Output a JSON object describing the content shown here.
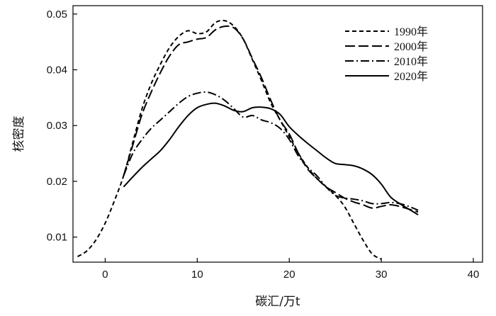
{
  "chart_data": {
    "type": "line",
    "title": "",
    "xlabel": "碳汇/万t",
    "ylabel": "核密度",
    "xlim": [
      -3.5,
      41
    ],
    "ylim": [
      0.0055,
      0.0515
    ],
    "xticks": [
      0,
      10,
      20,
      30,
      40
    ],
    "yticks": [
      0.01,
      0.02,
      0.03,
      0.04,
      0.05
    ],
    "ytick_labels": [
      "0.01",
      "0.02",
      "0.03",
      "0.04",
      "0.05"
    ],
    "grid": false,
    "legend_position": "top-right",
    "series": [
      {
        "name": "1990年",
        "dash": "dashed-short",
        "points": [
          [
            -3,
            0.0065
          ],
          [
            -2,
            0.0075
          ],
          [
            -1,
            0.0095
          ],
          [
            0,
            0.0125
          ],
          [
            1,
            0.0165
          ],
          [
            2,
            0.021
          ],
          [
            3,
            0.027
          ],
          [
            4,
            0.033
          ],
          [
            5,
            0.0375
          ],
          [
            6,
            0.041
          ],
          [
            7,
            0.044
          ],
          [
            8,
            0.046
          ],
          [
            9,
            0.047
          ],
          [
            10,
            0.0465
          ],
          [
            11,
            0.0468
          ],
          [
            12,
            0.0485
          ],
          [
            13,
            0.0488
          ],
          [
            14,
            0.0478
          ],
          [
            15,
            0.0455
          ],
          [
            16,
            0.0418
          ],
          [
            17,
            0.038
          ],
          [
            18,
            0.034
          ],
          [
            19,
            0.031
          ],
          [
            20,
            0.028
          ],
          [
            21,
            0.025
          ],
          [
            22,
            0.0225
          ],
          [
            23,
            0.0205
          ],
          [
            24,
            0.019
          ],
          [
            25,
            0.0175
          ],
          [
            26,
            0.0155
          ],
          [
            27,
            0.0125
          ],
          [
            28,
            0.0095
          ],
          [
            29,
            0.007
          ],
          [
            30,
            0.006
          ]
        ]
      },
      {
        "name": "2000年",
        "dash": "dashed-long",
        "points": [
          [
            2,
            0.021
          ],
          [
            3,
            0.0265
          ],
          [
            4,
            0.032
          ],
          [
            5,
            0.036
          ],
          [
            6,
            0.0395
          ],
          [
            7,
            0.0425
          ],
          [
            8,
            0.0445
          ],
          [
            9,
            0.045
          ],
          [
            10,
            0.0455
          ],
          [
            11,
            0.0458
          ],
          [
            12,
            0.0472
          ],
          [
            13,
            0.0478
          ],
          [
            14,
            0.0475
          ],
          [
            15,
            0.0455
          ],
          [
            16,
            0.042
          ],
          [
            17,
            0.0385
          ],
          [
            18,
            0.0345
          ],
          [
            19,
            0.031
          ],
          [
            20,
            0.0285
          ],
          [
            21,
            0.025
          ],
          [
            22,
            0.0222
          ],
          [
            23,
            0.0205
          ],
          [
            24,
            0.019
          ],
          [
            25,
            0.018
          ],
          [
            26,
            0.017
          ],
          [
            27,
            0.0163
          ],
          [
            28,
            0.0158
          ],
          [
            29,
            0.0152
          ],
          [
            30,
            0.0155
          ],
          [
            31,
            0.0158
          ],
          [
            32,
            0.0155
          ],
          [
            33,
            0.015
          ],
          [
            34,
            0.0145
          ]
        ]
      },
      {
        "name": "2010年",
        "dash": "dash-dot",
        "points": [
          [
            2,
            0.021
          ],
          [
            3,
            0.025
          ],
          [
            4,
            0.0275
          ],
          [
            5,
            0.0295
          ],
          [
            6,
            0.031
          ],
          [
            7,
            0.0325
          ],
          [
            8,
            0.034
          ],
          [
            9,
            0.0352
          ],
          [
            10,
            0.0358
          ],
          [
            11,
            0.036
          ],
          [
            12,
            0.0355
          ],
          [
            13,
            0.0345
          ],
          [
            14,
            0.033
          ],
          [
            15,
            0.0315
          ],
          [
            16,
            0.0318
          ],
          [
            17,
            0.031
          ],
          [
            18,
            0.0305
          ],
          [
            19,
            0.0295
          ],
          [
            20,
            0.0275
          ],
          [
            21,
            0.0245
          ],
          [
            22,
            0.0225
          ],
          [
            23,
            0.021
          ],
          [
            24,
            0.019
          ],
          [
            25,
            0.0175
          ],
          [
            26,
            0.017
          ],
          [
            27,
            0.0168
          ],
          [
            28,
            0.0165
          ],
          [
            29,
            0.016
          ],
          [
            30,
            0.016
          ],
          [
            31,
            0.0162
          ],
          [
            32,
            0.016
          ],
          [
            33,
            0.0155
          ],
          [
            34,
            0.0148
          ]
        ]
      },
      {
        "name": "2020年",
        "dash": "solid",
        "points": [
          [
            2,
            0.019
          ],
          [
            3,
            0.0208
          ],
          [
            4,
            0.0225
          ],
          [
            5,
            0.024
          ],
          [
            6,
            0.0255
          ],
          [
            7,
            0.0275
          ],
          [
            8,
            0.0298
          ],
          [
            9,
            0.0318
          ],
          [
            10,
            0.0332
          ],
          [
            11,
            0.0338
          ],
          [
            12,
            0.034
          ],
          [
            13,
            0.0335
          ],
          [
            14,
            0.0327
          ],
          [
            15,
            0.0325
          ],
          [
            16,
            0.0332
          ],
          [
            17,
            0.0333
          ],
          [
            18,
            0.033
          ],
          [
            19,
            0.032
          ],
          [
            20,
            0.0298
          ],
          [
            21,
            0.0282
          ],
          [
            22,
            0.0268
          ],
          [
            23,
            0.0255
          ],
          [
            24,
            0.0242
          ],
          [
            25,
            0.0232
          ],
          [
            26,
            0.023
          ],
          [
            27,
            0.0228
          ],
          [
            28,
            0.0222
          ],
          [
            29,
            0.0212
          ],
          [
            30,
            0.0195
          ],
          [
            31,
            0.0172
          ],
          [
            32,
            0.016
          ],
          [
            33,
            0.015
          ],
          [
            34,
            0.014
          ]
        ]
      }
    ]
  }
}
